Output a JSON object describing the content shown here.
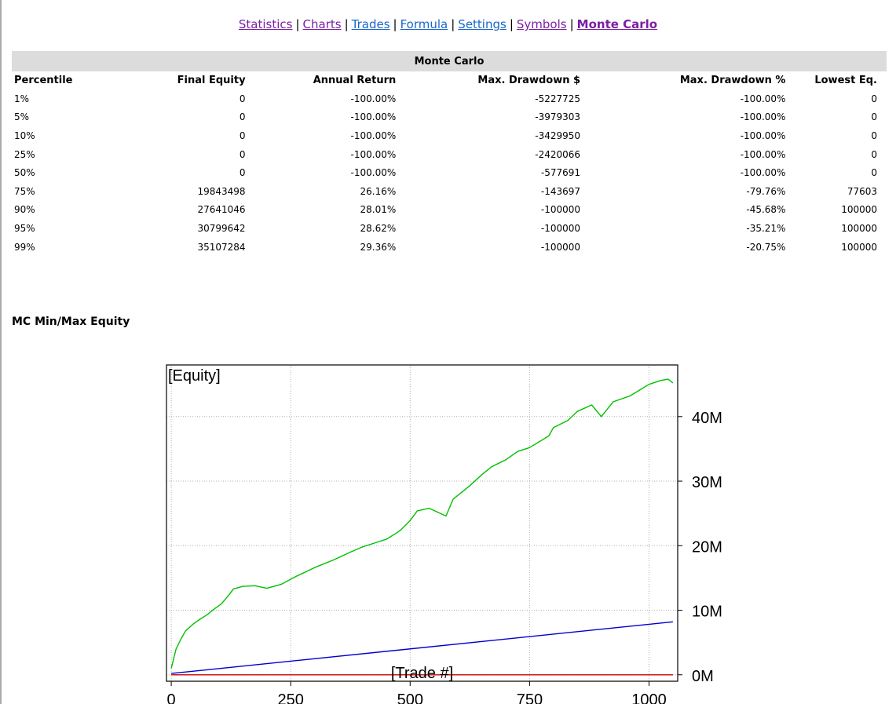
{
  "nav": {
    "items": [
      {
        "label": "Statistics",
        "state": "visited"
      },
      {
        "label": "Charts",
        "state": "visited"
      },
      {
        "label": "Trades",
        "state": "link"
      },
      {
        "label": "Formula",
        "state": "link"
      },
      {
        "label": "Settings",
        "state": "link"
      },
      {
        "label": "Symbols",
        "state": "visited"
      },
      {
        "label": "Monte Carlo",
        "state": "current"
      }
    ],
    "separator": "|"
  },
  "table": {
    "title": "Monte Carlo",
    "headers": [
      "Percentile",
      "Final Equity",
      "Annual Return",
      "Max. Drawdown $",
      "Max. Drawdown %",
      "Lowest Eq."
    ],
    "rows": [
      [
        "1%",
        "0",
        "-100.00%",
        "-5227725",
        "-100.00%",
        "0"
      ],
      [
        "5%",
        "0",
        "-100.00%",
        "-3979303",
        "-100.00%",
        "0"
      ],
      [
        "10%",
        "0",
        "-100.00%",
        "-3429950",
        "-100.00%",
        "0"
      ],
      [
        "25%",
        "0",
        "-100.00%",
        "-2420066",
        "-100.00%",
        "0"
      ],
      [
        "50%",
        "0",
        "-100.00%",
        "-577691",
        "-100.00%",
        "0"
      ],
      [
        "75%",
        "19843498",
        "26.16%",
        "-143697",
        "-79.76%",
        "77603"
      ],
      [
        "90%",
        "27641046",
        "28.01%",
        "-100000",
        "-45.68%",
        "100000"
      ],
      [
        "95%",
        "30799642",
        "28.62%",
        "-100000",
        "-35.21%",
        "100000"
      ],
      [
        "99%",
        "35107284",
        "29.36%",
        "-100000",
        "-20.75%",
        "100000"
      ]
    ]
  },
  "section_title": "MC Min/Max Equity",
  "chart_data": {
    "type": "line",
    "title": "[Equity]",
    "xlabel": "[Trade #]",
    "xlim": [
      -10,
      1060
    ],
    "ylim": [
      -1000000,
      48000000
    ],
    "xticks": [
      0,
      250,
      500,
      750,
      1000
    ],
    "xtick_labels": [
      "0",
      "250",
      "500",
      "750",
      "1000"
    ],
    "yticks": [
      0,
      10000000,
      20000000,
      30000000,
      40000000
    ],
    "ytick_labels": [
      "0M",
      "10M",
      "20M",
      "30M",
      "40M"
    ],
    "grid": true,
    "colors": {
      "max": "#00c000",
      "mid": "#0000cc",
      "min": "#cc0000"
    },
    "series": [
      {
        "key": "max",
        "x": [
          0,
          10,
          20,
          30,
          45,
          60,
          75,
          90,
          105,
          120,
          130,
          150,
          175,
          200,
          230,
          260,
          300,
          340,
          375,
          400,
          425,
          450,
          470,
          480,
          500,
          515,
          540,
          575,
          590,
          625,
          650,
          670,
          700,
          725,
          750,
          790,
          800,
          830,
          850,
          880,
          900,
          925,
          960,
          980,
          1000,
          1025,
          1040,
          1050
        ],
        "values": [
          1000000,
          4000000,
          5500000,
          6800000,
          7800000,
          8600000,
          9300000,
          10200000,
          11000000,
          12300000,
          13300000,
          13700000,
          13800000,
          13400000,
          14000000,
          15200000,
          16600000,
          17800000,
          19000000,
          19800000,
          20400000,
          21000000,
          21900000,
          22400000,
          23900000,
          25400000,
          25800000,
          24600000,
          27200000,
          29300000,
          31000000,
          32200000,
          33300000,
          34600000,
          35200000,
          37000000,
          38300000,
          39400000,
          40800000,
          41800000,
          40000000,
          42300000,
          43200000,
          44100000,
          45000000,
          45600000,
          45800000,
          45200000
        ]
      },
      {
        "key": "mid",
        "x": [
          0,
          1050
        ],
        "values": [
          200000,
          8200000
        ]
      },
      {
        "key": "min",
        "x": [
          0,
          1050
        ],
        "values": [
          0,
          0
        ]
      }
    ]
  }
}
